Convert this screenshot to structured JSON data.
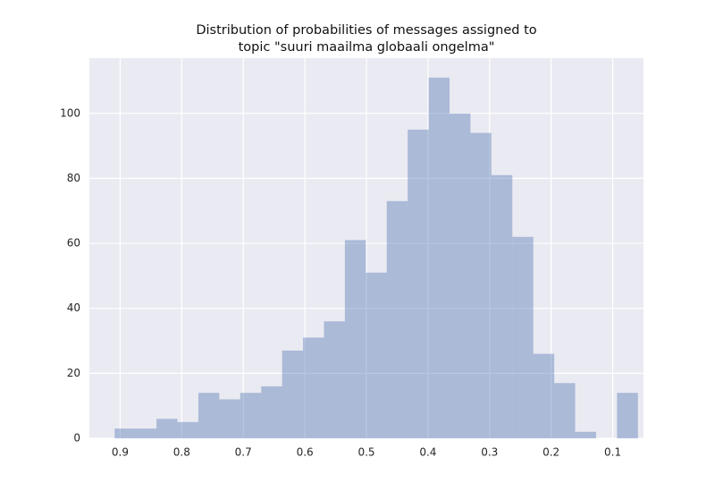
{
  "chart_data": {
    "type": "histogram",
    "title": [
      "Distribution of probabilities of messages assigned to",
      "topic \"suuri maailma globaali ongelma\""
    ],
    "bins": [
      0.059,
      0.093,
      0.127,
      0.161,
      0.195,
      0.229,
      0.263,
      0.297,
      0.331,
      0.365,
      0.399,
      0.433,
      0.467,
      0.501,
      0.535,
      0.569,
      0.603,
      0.637,
      0.671,
      0.705,
      0.739,
      0.773,
      0.807,
      0.841,
      0.875,
      0.909
    ],
    "values": [
      14,
      0,
      2,
      17,
      26,
      62,
      81,
      94,
      100,
      111,
      95,
      73,
      51,
      61,
      36,
      31,
      27,
      16,
      14,
      12,
      14,
      5,
      6,
      3,
      3
    ],
    "color": "#4c72b0",
    "xlim": [
      0.95,
      0.05
    ],
    "xticks": [
      0.9,
      0.8,
      0.7,
      0.6,
      0.5,
      0.4,
      0.3,
      0.2,
      0.1
    ],
    "ylim": [
      0,
      117
    ],
    "yticks": [
      0,
      20,
      40,
      60,
      80,
      100
    ],
    "grid": true
  }
}
